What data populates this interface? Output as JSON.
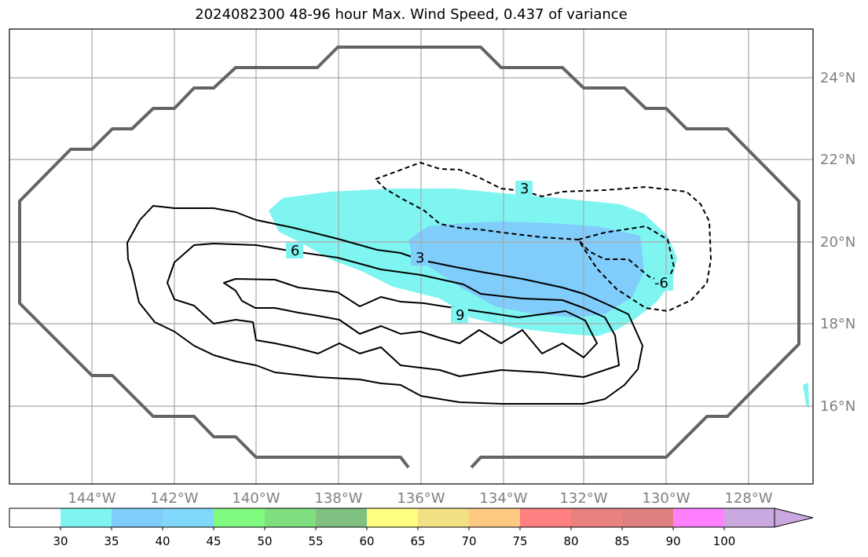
{
  "title": "2024082300 48-96 hour Max. Wind Speed, 0.437 of variance",
  "map": {
    "lon_labels": [
      "144°W",
      "142°W",
      "140°W",
      "138°W",
      "136°W",
      "134°W",
      "132°W",
      "130°W",
      "128°W"
    ],
    "lat_labels": [
      "24°N",
      "22°N",
      "20°N",
      "18°N",
      "16°N"
    ],
    "contour_labels": [
      {
        "text": "3",
        "name": "contour-label-dashed-3"
      },
      {
        "text": "6",
        "name": "contour-label-6"
      },
      {
        "text": "3",
        "name": "contour-label-3"
      },
      {
        "text": "9",
        "name": "contour-label-9"
      },
      {
        "text": "-6",
        "name": "contour-label-dashed-6"
      }
    ],
    "fill_colors": {
      "band_30_35": "#7ff5f2",
      "band_35_40": "#80ccfb"
    }
  },
  "colorbar": {
    "ticks": [
      "30",
      "35",
      "40",
      "45",
      "50",
      "55",
      "60",
      "65",
      "70",
      "75",
      "80",
      "85",
      "90",
      "100"
    ],
    "colors": [
      "#ffffff",
      "#7ff5f2",
      "#80ccfb",
      "#80d8fb",
      "#80fb80",
      "#80e07f",
      "#80c080",
      "#fefe80",
      "#f3e283",
      "#fec983",
      "#fe8080",
      "#e88180",
      "#de8080",
      "#ff80ff",
      "#c9a9e0"
    ]
  }
}
